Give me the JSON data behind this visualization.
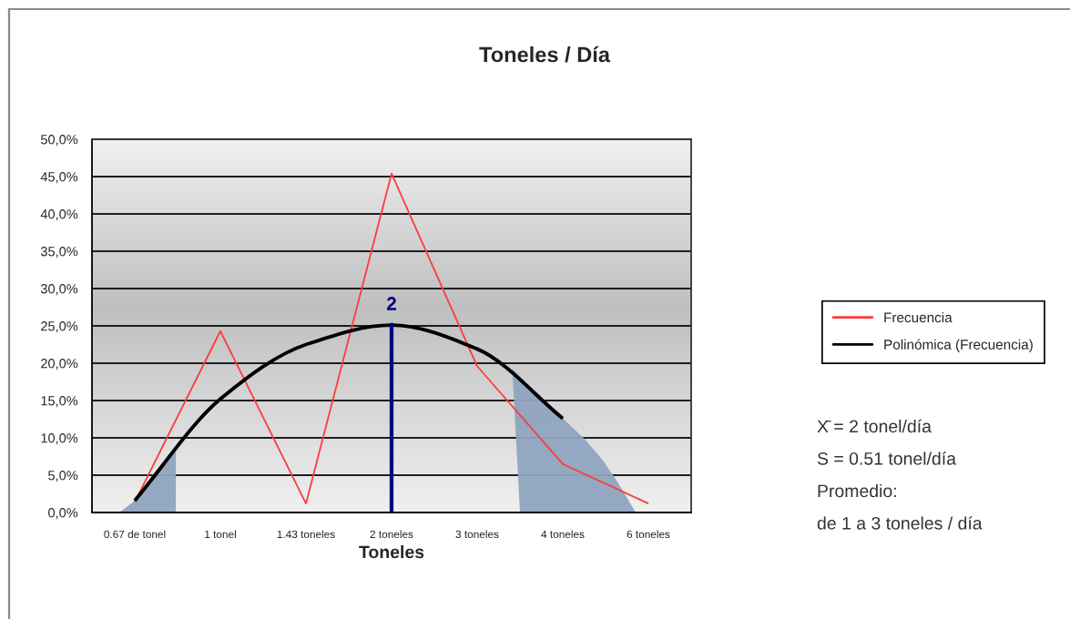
{
  "chart_data": {
    "type": "line",
    "title": "Toneles / Día",
    "xlabel": "Toneles",
    "categories": [
      "0.67 de tonel",
      "1 tonel",
      "1.43 toneles",
      "2 toneles",
      "3 toneles",
      "4 toneles",
      "6 toneles"
    ],
    "series": [
      {
        "name": "Frecuencia",
        "color": "#ff3b3b",
        "values": [
          1.4,
          24.3,
          1.2,
          45.4,
          19.6,
          6.5,
          1.2
        ]
      },
      {
        "name": "Polinómica (Frecuencia)",
        "color": "#000000",
        "values": [
          1.6,
          15.2,
          22.5,
          25.1,
          21.9,
          12.6,
          null
        ]
      },
      {
        "type": "bar",
        "color": "#000080",
        "values": [
          null,
          null,
          null,
          25.4,
          null,
          null,
          null
        ]
      }
    ],
    "ylim": [
      0,
      50
    ],
    "yticks": [
      {
        "value": 0,
        "label": "0,0%"
      },
      {
        "value": 5,
        "label": "5,0%"
      },
      {
        "value": 10,
        "label": "10,0%"
      },
      {
        "value": 15,
        "label": "15,0%"
      },
      {
        "value": 20,
        "label": "20,0%"
      },
      {
        "value": 25,
        "label": "25,0%"
      },
      {
        "value": 30,
        "label": "30,0%"
      },
      {
        "value": 35,
        "label": "35,0%"
      },
      {
        "value": 40,
        "label": "40,0%"
      },
      {
        "value": 45,
        "label": "45,0%"
      },
      {
        "value": 50,
        "label": "50,0%"
      }
    ],
    "grid": "y",
    "legend": "right",
    "annotations": [
      {
        "text": "2",
        "x": "2 toneles",
        "y": 25.4
      },
      "X̄ = 2 tonel/día",
      "S = 0.51 tonel/día",
      "Promedio:",
      "de 1 a 3 toneles / día"
    ]
  }
}
